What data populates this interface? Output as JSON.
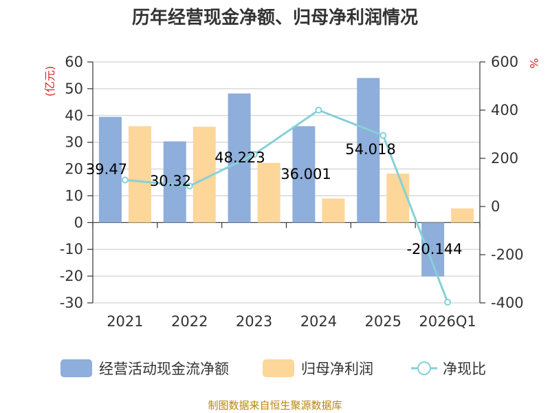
{
  "chart_data": {
    "type": "bar",
    "title": "历年经营现金净额、归母净利润情况",
    "categories": [
      "2021",
      "2022",
      "2023",
      "2024",
      "2025",
      "2026Q1"
    ],
    "series": [
      {
        "name": "经营活动现金流净额",
        "type": "bar",
        "axis": "left",
        "color": "#8eaedb",
        "values": [
          39.47,
          30.32,
          48.223,
          36.001,
          54.018,
          -20.144
        ],
        "labels": [
          "39.47",
          "30.32",
          "48.223",
          "36.001",
          "54.018",
          "-20.144"
        ]
      },
      {
        "name": "归母净利润",
        "type": "bar",
        "axis": "left",
        "color": "#fdd69a",
        "values": [
          36.0,
          35.8,
          22.3,
          9.0,
          18.3,
          5.3
        ]
      },
      {
        "name": "净现比",
        "type": "line",
        "axis": "right",
        "color": "#86d0d8",
        "values": [
          110,
          85,
          216,
          400,
          295,
          -397
        ]
      }
    ],
    "left_axis": {
      "unit": "(亿元)",
      "min": -30,
      "max": 60,
      "ticks": [
        60,
        50,
        40,
        30,
        20,
        10,
        0,
        -10,
        -20,
        -30
      ]
    },
    "right_axis": {
      "unit": "%",
      "min": -400,
      "max": 600,
      "ticks": [
        600,
        400,
        200,
        0,
        -200,
        -400
      ]
    },
    "legend_position": "bottom",
    "grid": true
  },
  "source": "制图数据来自恒生聚源数据库"
}
